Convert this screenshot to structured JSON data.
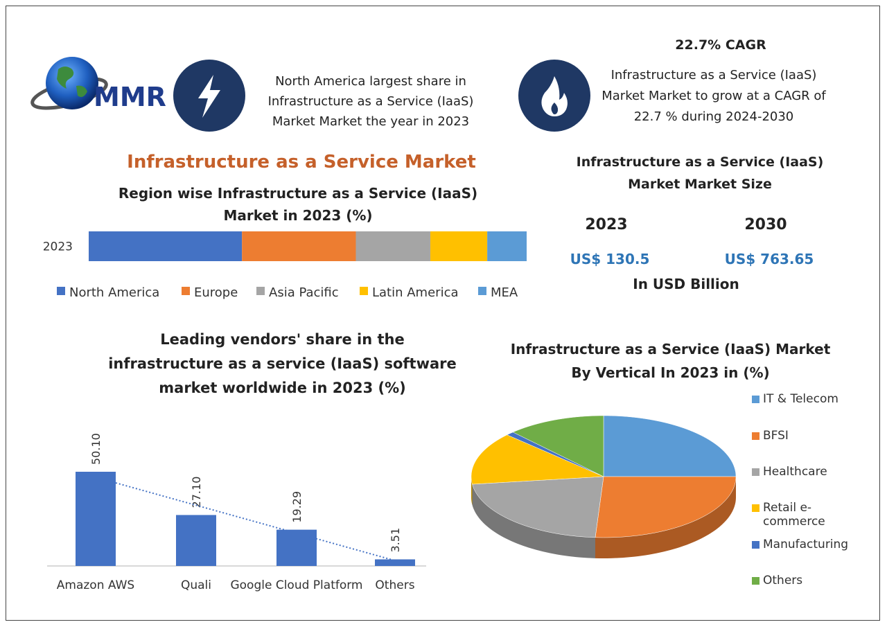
{
  "logo_text": "MMR",
  "highlights": [
    {
      "text": "North America largest share in Infrastructure as a Service (IaaS) Market Market the year in 2023"
    },
    {
      "title": "22.7% CAGR",
      "text": "Infrastructure as a Service (IaaS) Market Market to grow at a CAGR of 22.7 % during 2024-2030"
    }
  ],
  "main_title": "Infrastructure as a Service Market",
  "market_size": {
    "title": "Infrastructure as a Service (IaaS) Market Market Size",
    "years": [
      "2023",
      "2030"
    ],
    "values": [
      "US$ 130.5",
      "US$ 763.65"
    ],
    "unit": "In USD Billion"
  },
  "chart_data": [
    {
      "type": "stacked-bar",
      "title": "Region wise Infrastructure as a Service (IaaS) Market in 2023 (%)",
      "categories": [
        "2023"
      ],
      "series": [
        {
          "name": "North America",
          "color": "#4472c4",
          "values": [
            35
          ]
        },
        {
          "name": "Europe",
          "color": "#ed7d31",
          "values": [
            26
          ]
        },
        {
          "name": "Asia Pacific",
          "color": "#a5a5a5",
          "values": [
            17
          ]
        },
        {
          "name": "Latin America",
          "color": "#ffc000",
          "values": [
            13
          ]
        },
        {
          "name": "MEA",
          "color": "#5b9bd5",
          "values": [
            9
          ]
        }
      ],
      "legend": "bottom"
    },
    {
      "type": "bar",
      "title": "Leading vendors' share in the infrastructure as a service (IaaS) software market worldwide in 2023 (%)",
      "categories": [
        "Amazon AWS",
        "Quali",
        "Google Cloud Platform",
        "Others"
      ],
      "values": [
        50.1,
        27.1,
        19.29,
        3.51
      ],
      "value_labels": [
        "50.10",
        "27.10",
        "19.29",
        "3.51"
      ],
      "color": "#4472c4",
      "trendline": true
    },
    {
      "type": "pie",
      "title": "Infrastructure as a Service (IaaS) Market By Vertical In 2023 in (%)",
      "categories": [
        "IT & Telecom",
        "BFSI",
        "Healthcare",
        "Retail e-commerce",
        "Manufacturing",
        "Others"
      ],
      "values": [
        25,
        26,
        22,
        14,
        1,
        12
      ],
      "colors": [
        "#5b9bd5",
        "#ed7d31",
        "#a5a5a5",
        "#ffc000",
        "#4472c4",
        "#70ad47"
      ],
      "legend": "right"
    }
  ]
}
